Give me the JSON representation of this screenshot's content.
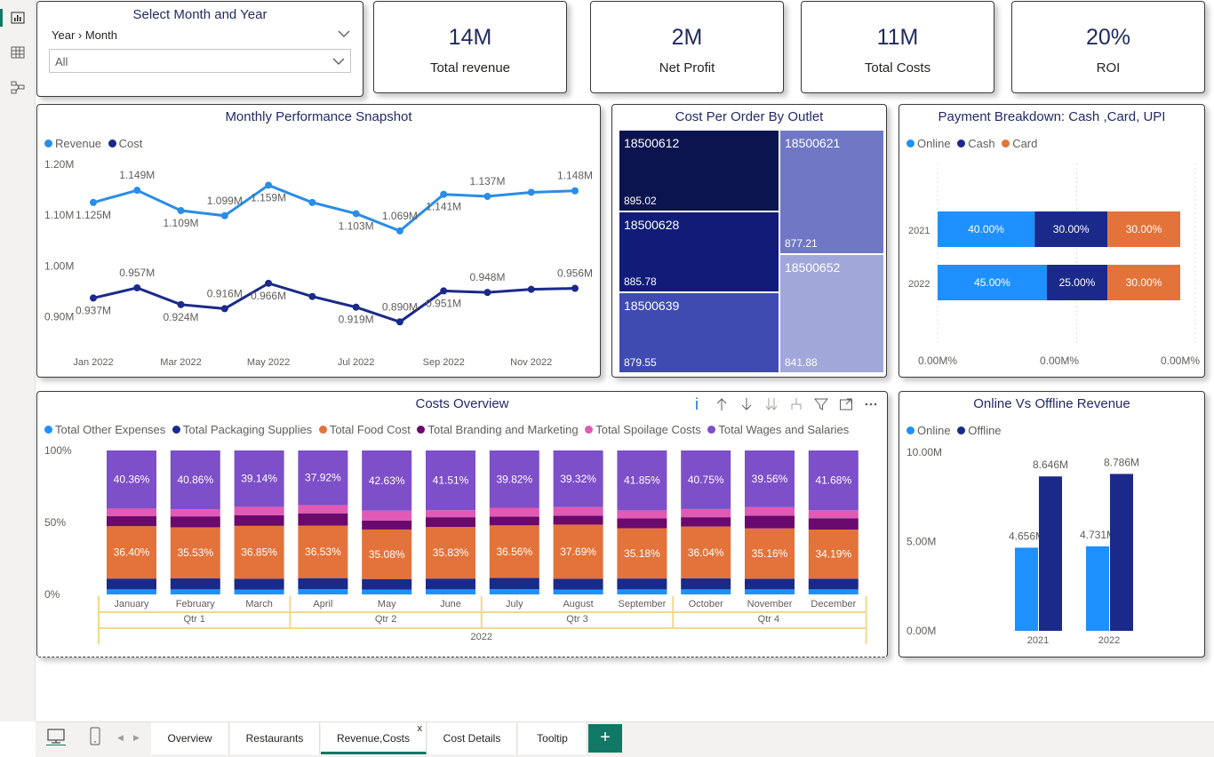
{
  "slicer": {
    "title": "Select Month and Year",
    "hierarchy": "Year › Month",
    "selected": "All"
  },
  "kpis": [
    {
      "value": "14M",
      "label": "Total revenue"
    },
    {
      "value": "2M",
      "label": "Net Profit"
    },
    {
      "value": "11M",
      "label": "Total Costs"
    },
    {
      "value": "20%",
      "label": "ROI"
    }
  ],
  "monthly": {
    "title": "Monthly Performance Snapshot",
    "legend": [
      {
        "name": "Revenue",
        "color": "#2a8de6"
      },
      {
        "name": "Cost",
        "color": "#1b2a8a"
      }
    ],
    "chart_data": {
      "type": "line",
      "x_tick_labels": [
        "Jan 2022",
        "Mar 2022",
        "May 2022",
        "Jul 2022",
        "Sep 2022",
        "Nov 2022"
      ],
      "y_tick_labels": [
        "1.20M",
        "1.10M",
        "1.00M",
        "0.90M"
      ],
      "ylim": [
        0.88,
        1.2
      ],
      "series": [
        {
          "name": "Revenue",
          "color": "#2a8de6",
          "values": [
            1.125,
            1.149,
            1.109,
            1.099,
            1.159,
            1.125,
            1.103,
            1.069,
            1.141,
            1.137,
            1.145,
            1.148
          ],
          "labels": [
            "1.125M",
            "1.149M",
            "1.109M",
            "1.099M",
            "1.159M",
            "",
            "1.103M",
            "1.069M",
            "1.141M",
            "1.137M",
            "",
            "1.148M"
          ]
        },
        {
          "name": "Cost",
          "color": "#1b2a8a",
          "values": [
            0.937,
            0.957,
            0.924,
            0.916,
            0.966,
            0.94,
            0.919,
            0.89,
            0.951,
            0.948,
            0.954,
            0.956
          ],
          "labels": [
            "0.937M",
            "0.957M",
            "0.924M",
            "0.916M",
            "0.966M",
            "",
            "0.919M",
            "0.890M",
            "0.951M",
            "0.948M",
            "",
            "0.956M"
          ]
        }
      ]
    }
  },
  "treemap": {
    "title": "Cost Per Order By Outlet",
    "chart_data": {
      "type": "treemap",
      "items": [
        {
          "name": "18500612",
          "value": "895.02",
          "color": "#0c1450"
        },
        {
          "name": "18500628",
          "value": "885.78",
          "color": "#101c78"
        },
        {
          "name": "18500639",
          "value": "879.55",
          "color": "#3f4bb0"
        },
        {
          "name": "18500621",
          "value": "877.21",
          "color": "#7078c6"
        },
        {
          "name": "18500652",
          "value": "841.88",
          "color": "#a2a7da"
        }
      ]
    }
  },
  "payment": {
    "title": "Payment Breakdown: Cash ,Card, UPI",
    "legend": [
      {
        "name": "Online",
        "color": "#1e90ff"
      },
      {
        "name": "Cash",
        "color": "#1b2a8a"
      },
      {
        "name": "Card",
        "color": "#e3733a"
      }
    ],
    "chart_data": {
      "type": "bar",
      "orientation": "horizontal-stacked",
      "categories": [
        "2021",
        "2022"
      ],
      "series": [
        {
          "name": "Online",
          "color": "#1e90ff",
          "values": [
            40,
            45
          ],
          "labels": [
            "40.00%",
            "45.00%"
          ]
        },
        {
          "name": "Cash",
          "color": "#1b2a8a",
          "values": [
            30,
            25
          ],
          "labels": [
            "30.00%",
            "25.00%"
          ]
        },
        {
          "name": "Card",
          "color": "#e3733a",
          "values": [
            30,
            30
          ],
          "labels": [
            "30.00%",
            "30.00%"
          ]
        }
      ],
      "x_tick_labels": [
        "0.00M%",
        "0.00M%",
        "0.00M%"
      ]
    }
  },
  "costs": {
    "title": "Costs Overview",
    "legend": [
      {
        "name": "Total Other Expenses",
        "color": "#1e90ff"
      },
      {
        "name": "Total Packaging Supplies",
        "color": "#1b2a8a"
      },
      {
        "name": "Total Food Cost",
        "color": "#e3733a"
      },
      {
        "name": "Total Branding and Marketing",
        "color": "#6a0a6e"
      },
      {
        "name": "Total Spoilage Costs",
        "color": "#e15ab4"
      },
      {
        "name": "Total Wages and Salaries",
        "color": "#7d4fc9"
      }
    ],
    "chart_data": {
      "type": "bar",
      "orientation": "vertical-100%-stacked",
      "y_tick_labels": [
        "100%",
        "50%",
        "0%"
      ],
      "categories": [
        "January",
        "February",
        "March",
        "April",
        "May",
        "June",
        "July",
        "August",
        "September",
        "October",
        "November",
        "December"
      ],
      "quarters": [
        "Qtr 1",
        "Qtr 2",
        "Qtr 3",
        "Qtr 4"
      ],
      "year": "2022",
      "series": [
        {
          "name": "Total Other Expenses",
          "values": [
            3.5,
            3.5,
            3.4,
            3.6,
            3.4,
            3.5,
            3.6,
            3.4,
            3.5,
            3.5,
            3.5,
            3.5
          ]
        },
        {
          "name": "Total Packaging Supplies",
          "values": [
            7.5,
            7.6,
            7.4,
            7.7,
            7.5,
            7.5,
            7.8,
            7.4,
            7.6,
            7.7,
            7.4,
            7.5
          ]
        },
        {
          "name": "Total Food Cost",
          "values": [
            36.4,
            35.53,
            36.85,
            36.53,
            35.08,
            35.83,
            36.56,
            37.69,
            35.18,
            36.04,
            35.16,
            34.19
          ]
        },
        {
          "name": "Total Branding and Marketing",
          "values": [
            6.9,
            7.6,
            7.3,
            8.5,
            6.4,
            6.8,
            6.1,
            6.2,
            6.8,
            6.5,
            8.9,
            7.9
          ]
        },
        {
          "name": "Total Spoilage Costs",
          "values": [
            5.34,
            4.91,
            5.91,
            5.75,
            6.99,
            4.86,
            6.12,
            5.99,
            5.67,
            5.71,
            5.88,
            5.53
          ]
        },
        {
          "name": "Total Wages and Salaries",
          "values": [
            40.36,
            40.86,
            39.14,
            37.92,
            42.63,
            41.51,
            39.82,
            39.32,
            41.85,
            40.75,
            39.56,
            41.68
          ]
        }
      ]
    }
  },
  "onoff": {
    "title": "Online Vs Offline Revenue",
    "legend": [
      {
        "name": "Online",
        "color": "#1e90ff"
      },
      {
        "name": "Offline",
        "color": "#1b2a8a"
      }
    ],
    "chart_data": {
      "type": "bar",
      "categories": [
        "2021",
        "2022"
      ],
      "y_tick_labels": [
        "10.00M",
        "5.00M",
        "0.00M"
      ],
      "ylim": [
        0,
        10
      ],
      "series": [
        {
          "name": "Online",
          "color": "#1e90ff",
          "values": [
            4.656,
            4.731
          ],
          "labels": [
            "4.656M",
            "4.731M"
          ]
        },
        {
          "name": "Offline",
          "color": "#1b2a8a",
          "values": [
            8.646,
            8.786
          ],
          "labels": [
            "8.646M",
            "8.786M"
          ]
        }
      ]
    }
  },
  "tabs": [
    {
      "label": "Overview"
    },
    {
      "label": "Restaurants"
    },
    {
      "label": "Revenue,Costs",
      "active": true
    },
    {
      "label": "Cost Details"
    },
    {
      "label": "Tooltip"
    }
  ],
  "tab_close": "x",
  "add_tab": "+"
}
